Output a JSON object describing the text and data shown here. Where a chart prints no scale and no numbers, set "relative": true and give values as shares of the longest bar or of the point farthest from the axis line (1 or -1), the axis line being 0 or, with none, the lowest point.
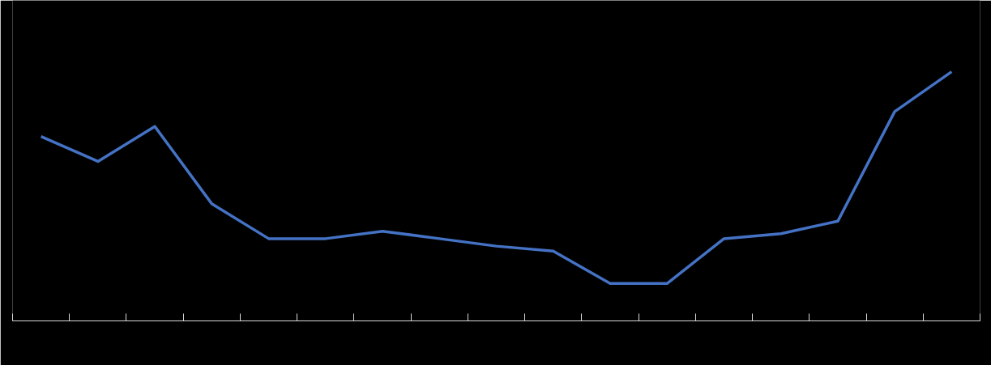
{
  "chart_data": {
    "type": "line",
    "relative": true,
    "categories": [
      null,
      null,
      null,
      null,
      null,
      null,
      null,
      null,
      null,
      null,
      null,
      null,
      null,
      null,
      null,
      null,
      null
    ],
    "series": [
      {
        "color": "#4472c4",
        "values": [
          0.74,
          0.64,
          0.78,
          0.47,
          0.33,
          0.33,
          0.36,
          0.33,
          0.3,
          0.28,
          0.15,
          0.15,
          0.33,
          0.35,
          0.4,
          0.84,
          1.0
        ]
      }
    ],
    "grid": false,
    "marker": "none",
    "line_style": "solid",
    "tick_labels": false
  }
}
